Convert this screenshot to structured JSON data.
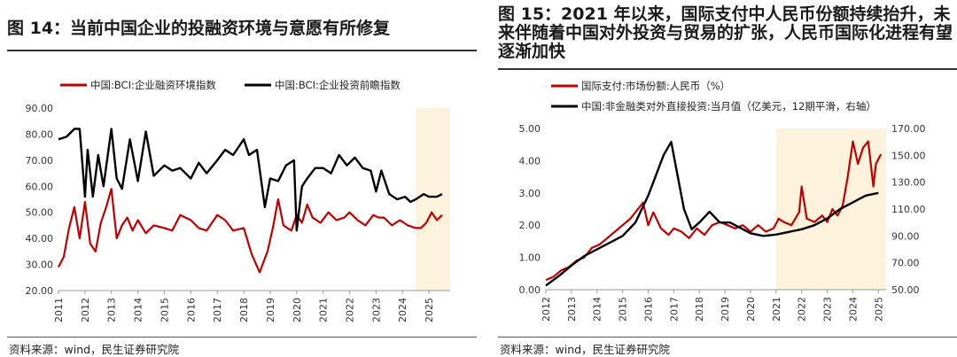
{
  "panels": [
    {
      "title": "图 14：当前中国企业的投融资环境与意愿有所修复",
      "source": "资料来源：wind，民生证券研究院"
    },
    {
      "title": "图 15：2021 年以来，国际支付中人民币份额持续抬升，未来伴随着中国对外投资与贸易的扩张，人民币国际化进程有望逐渐加快",
      "source": "资料来源：wind，民生证券研究院"
    }
  ],
  "chart_data": [
    {
      "type": "line",
      "title": "",
      "ylim": [
        20,
        90
      ],
      "yticks": [
        "90.00",
        "80.00",
        "70.00",
        "60.00",
        "50.00",
        "40.00",
        "30.00",
        "20.00"
      ],
      "xticks": [
        "2011",
        "2012",
        "2013",
        "2014",
        "2015",
        "2016",
        "2017",
        "2018",
        "2019",
        "2020",
        "2021",
        "2022",
        "2023",
        "2024",
        "2025"
      ],
      "xlim": [
        2011,
        2025.8
      ],
      "legend_position": "top",
      "highlight_range": [
        2024.5,
        2025.8
      ],
      "colors": {
        "series1": "#c00000",
        "series2": "#000000",
        "highlight": "#fdf3dc"
      },
      "series": [
        {
          "name": "中国:BCI:企业融资环境指数",
          "x": [
            2011.0,
            2011.2,
            2011.4,
            2011.6,
            2011.8,
            2012.0,
            2012.2,
            2012.4,
            2012.6,
            2012.8,
            2013.0,
            2013.2,
            2013.4,
            2013.6,
            2013.8,
            2014.0,
            2014.3,
            2014.6,
            2015.0,
            2015.3,
            2015.6,
            2016.0,
            2016.3,
            2016.6,
            2017.0,
            2017.3,
            2017.6,
            2018.0,
            2018.3,
            2018.6,
            2018.9,
            2019.1,
            2019.3,
            2019.5,
            2019.8,
            2020.0,
            2020.2,
            2020.4,
            2020.6,
            2020.9,
            2021.2,
            2021.5,
            2021.8,
            2022.0,
            2022.3,
            2022.6,
            2022.9,
            2023.1,
            2023.3,
            2023.6,
            2023.9,
            2024.2,
            2024.5,
            2024.7,
            2024.9,
            2025.1,
            2025.3,
            2025.5
          ],
          "values": [
            29,
            33,
            44,
            52,
            40,
            54,
            38,
            35,
            46,
            52,
            59,
            40,
            45,
            48,
            43,
            47,
            42,
            45,
            44,
            43,
            49,
            47,
            44,
            43,
            49,
            47,
            43,
            44,
            34,
            27,
            35,
            44,
            55,
            45,
            43,
            49,
            46,
            53,
            48,
            46,
            50,
            47,
            48,
            50,
            47,
            45,
            49,
            48,
            48,
            45,
            47,
            45,
            44,
            44,
            46,
            50,
            47,
            49
          ]
        },
        {
          "name": "中国:BCI:企业投资前瞻指数",
          "x": [
            2011.0,
            2011.3,
            2011.6,
            2011.8,
            2012.0,
            2012.1,
            2012.3,
            2012.5,
            2012.7,
            2013.0,
            2013.2,
            2013.4,
            2013.7,
            2014.0,
            2014.3,
            2014.6,
            2015.0,
            2015.3,
            2015.6,
            2016.0,
            2016.3,
            2016.6,
            2017.0,
            2017.3,
            2017.6,
            2018.0,
            2018.2,
            2018.5,
            2018.8,
            2019.0,
            2019.3,
            2019.6,
            2019.9,
            2020.0,
            2020.2,
            2020.4,
            2020.7,
            2021.0,
            2021.3,
            2021.6,
            2021.9,
            2022.2,
            2022.5,
            2022.8,
            2023.0,
            2023.2,
            2023.5,
            2023.8,
            2024.1,
            2024.3,
            2024.5,
            2024.8,
            2025.0,
            2025.3,
            2025.5
          ],
          "values": [
            78,
            79,
            82,
            82,
            56,
            74,
            56,
            72,
            60,
            82,
            63,
            59,
            78,
            62,
            81,
            64,
            68,
            66,
            67,
            63,
            69,
            65,
            70,
            74,
            72,
            78,
            72,
            74,
            52,
            63,
            62,
            68,
            70,
            43,
            60,
            63,
            67,
            67,
            65,
            72,
            68,
            71,
            67,
            66,
            58,
            66,
            57,
            55,
            56,
            54,
            55,
            57,
            56,
            56,
            57
          ]
        }
      ]
    },
    {
      "type": "line",
      "title": "",
      "ylim_left": [
        0,
        5
      ],
      "ylim_right": [
        50,
        170
      ],
      "yticks_left": [
        "5.00",
        "4.00",
        "3.00",
        "2.00",
        "1.00",
        "0.00"
      ],
      "yticks_right": [
        "170.00",
        "150.00",
        "130.00",
        "110.00",
        "90.00",
        "70.00",
        "50.00"
      ],
      "xticks": [
        "2012",
        "2013",
        "2014",
        "2015",
        "2016",
        "2017",
        "2018",
        "2019",
        "2020",
        "2021",
        "2022",
        "2023",
        "2024",
        "2025"
      ],
      "xlim": [
        2012,
        2025.3
      ],
      "legend_position": "top",
      "highlight_range": [
        2021.0,
        2025.3
      ],
      "colors": {
        "series1": "#c00000",
        "series2": "#000000",
        "highlight": "#fdf3dc"
      },
      "series": [
        {
          "name": "国际支付:市场份额:人民币（%）",
          "axis": "left",
          "x": [
            2012.0,
            2012.3,
            2012.6,
            2012.9,
            2013.2,
            2013.5,
            2013.8,
            2014.1,
            2014.4,
            2014.7,
            2015.0,
            2015.3,
            2015.6,
            2015.8,
            2016.0,
            2016.2,
            2016.5,
            2016.8,
            2017.0,
            2017.3,
            2017.6,
            2017.9,
            2018.2,
            2018.5,
            2018.8,
            2019.1,
            2019.4,
            2019.7,
            2020.0,
            2020.3,
            2020.6,
            2020.9,
            2021.1,
            2021.3,
            2021.6,
            2021.9,
            2022.0,
            2022.2,
            2022.5,
            2022.8,
            2023.0,
            2023.2,
            2023.4,
            2023.6,
            2023.8,
            2024.0,
            2024.2,
            2024.4,
            2024.6,
            2024.8,
            2024.9,
            2025.1
          ],
          "values": [
            0.3,
            0.4,
            0.6,
            0.7,
            0.9,
            1.0,
            1.3,
            1.4,
            1.6,
            1.8,
            2.0,
            2.2,
            2.5,
            2.7,
            2.0,
            2.4,
            1.9,
            1.7,
            1.9,
            1.8,
            1.6,
            1.9,
            1.7,
            2.0,
            2.1,
            2.0,
            1.9,
            2.0,
            1.8,
            2.0,
            1.8,
            1.9,
            2.2,
            2.1,
            2.0,
            2.4,
            3.2,
            2.2,
            2.1,
            2.3,
            2.1,
            2.5,
            2.3,
            2.6,
            3.5,
            4.6,
            3.9,
            4.4,
            4.6,
            3.2,
            3.9,
            4.2
          ]
        },
        {
          "name": "中国:非金融类对外直接投资:当月值（亿美元，12期平滑，右轴）",
          "axis": "right",
          "x": [
            2012.0,
            2012.5,
            2013.0,
            2013.5,
            2014.0,
            2014.5,
            2015.0,
            2015.5,
            2016.0,
            2016.3,
            2016.6,
            2016.9,
            2017.1,
            2017.4,
            2017.7,
            2018.0,
            2018.4,
            2018.8,
            2019.2,
            2019.6,
            2020.0,
            2020.5,
            2021.0,
            2021.5,
            2022.0,
            2022.5,
            2023.0,
            2023.5,
            2024.0,
            2024.5,
            2025.0
          ],
          "values": [
            53,
            60,
            68,
            75,
            80,
            85,
            90,
            100,
            120,
            135,
            150,
            160,
            140,
            110,
            95,
            100,
            108,
            100,
            100,
            96,
            92,
            90,
            91,
            93,
            95,
            98,
            103,
            110,
            115,
            120,
            122
          ]
        }
      ]
    }
  ]
}
